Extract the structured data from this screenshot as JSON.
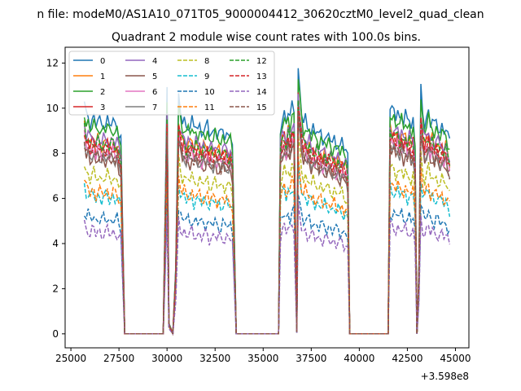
{
  "chart_data": {
    "type": "line",
    "suptitle": "n file: modeM0/AS1A10_071T05_9000004412_30620cztM0_level2_quad_clean",
    "title": "Quadrant 2 module wise count rates with 100.0s bins.",
    "xlabel": "",
    "ylabel": "",
    "offset_label": "+3.598e8",
    "xlim": [
      24700,
      45700
    ],
    "ylim": [
      -0.62,
      12.7
    ],
    "xticks": [
      25000,
      27500,
      30000,
      32500,
      35000,
      37500,
      40000,
      42500,
      45000
    ],
    "yticks": [
      0,
      2,
      4,
      6,
      8,
      10,
      12
    ],
    "legend_position": "upper-left",
    "series": [
      {
        "name": "0",
        "color": "#1f77b4",
        "style": "solid",
        "level": 9.6
      },
      {
        "name": "1",
        "color": "#ff7f0e",
        "style": "solid",
        "level": 8.7
      },
      {
        "name": "2",
        "color": "#2ca02c",
        "style": "solid",
        "level": 9.3
      },
      {
        "name": "3",
        "color": "#d62728",
        "style": "solid",
        "level": 8.5
      },
      {
        "name": "4",
        "color": "#9467bd",
        "style": "solid",
        "level": 8.8
      },
      {
        "name": "5",
        "color": "#8c564b",
        "style": "solid",
        "level": 7.9
      },
      {
        "name": "6",
        "color": "#e377c2",
        "style": "solid",
        "level": 8.2
      },
      {
        "name": "7",
        "color": "#7f7f7f",
        "style": "solid",
        "level": 8.0
      },
      {
        "name": "8",
        "color": "#bcbd22",
        "style": "dashed",
        "level": 7.1
      },
      {
        "name": "9",
        "color": "#17becf",
        "style": "dashed",
        "level": 6.2
      },
      {
        "name": "10",
        "color": "#1f77b4",
        "style": "dashed",
        "level": 5.2
      },
      {
        "name": "11",
        "color": "#ff7f0e",
        "style": "dashed",
        "level": 6.4
      },
      {
        "name": "12",
        "color": "#2ca02c",
        "style": "dashed",
        "level": 8.6
      },
      {
        "name": "13",
        "color": "#d62728",
        "style": "dashed",
        "level": 8.4
      },
      {
        "name": "14",
        "color": "#9467bd",
        "style": "dashed",
        "level": 4.6
      },
      {
        "name": "15",
        "color": "#8c564b",
        "style": "dashed",
        "level": 8.1
      }
    ],
    "profile": [
      [
        25700,
        1.06
      ],
      [
        25800,
        1.0
      ],
      [
        25900,
        1.01
      ],
      [
        26000,
        0.97
      ],
      [
        26100,
        0.99
      ],
      [
        26200,
        1.0
      ],
      [
        26300,
        0.96
      ],
      [
        26400,
        0.99
      ],
      [
        26500,
        0.98
      ],
      [
        26600,
        0.96
      ],
      [
        26700,
        0.98
      ],
      [
        26800,
        0.97
      ],
      [
        26900,
        0.99
      ],
      [
        27000,
        0.96
      ],
      [
        27100,
        0.97
      ],
      [
        27200,
        0.98
      ],
      [
        27300,
        0.96
      ],
      [
        27400,
        0.97
      ],
      [
        27500,
        0.93
      ],
      [
        27600,
        0.9
      ],
      [
        27800,
        0.0
      ],
      [
        29800,
        0.0
      ],
      [
        29900,
        0.55
      ],
      [
        30000,
        1.12
      ],
      [
        30100,
        0.05
      ],
      [
        30300,
        0.0
      ],
      [
        30450,
        0.3
      ],
      [
        30600,
        1.08
      ],
      [
        30700,
        1.02
      ],
      [
        30800,
        0.98
      ],
      [
        30900,
        0.99
      ],
      [
        31000,
        0.95
      ],
      [
        31100,
        0.97
      ],
      [
        31200,
        0.96
      ],
      [
        31300,
        0.98
      ],
      [
        31400,
        0.94
      ],
      [
        31500,
        0.97
      ],
      [
        31600,
        0.95
      ],
      [
        31700,
        0.96
      ],
      [
        31800,
        0.93
      ],
      [
        31900,
        0.95
      ],
      [
        32000,
        0.94
      ],
      [
        32100,
        0.96
      ],
      [
        32200,
        0.92
      ],
      [
        32300,
        0.94
      ],
      [
        32400,
        0.93
      ],
      [
        32500,
        0.95
      ],
      [
        32600,
        0.92
      ],
      [
        32700,
        0.93
      ],
      [
        32800,
        0.91
      ],
      [
        32900,
        0.94
      ],
      [
        33000,
        0.92
      ],
      [
        33100,
        0.93
      ],
      [
        33200,
        0.91
      ],
      [
        33300,
        0.92
      ],
      [
        33400,
        0.88
      ],
      [
        33600,
        0.0
      ],
      [
        35800,
        0.0
      ],
      [
        35900,
        0.95
      ],
      [
        36000,
        1.0
      ],
      [
        36100,
        1.02
      ],
      [
        36200,
        0.97
      ],
      [
        36300,
        1.03
      ],
      [
        36400,
        0.99
      ],
      [
        36500,
        1.05
      ],
      [
        36600,
        1.04
      ],
      [
        36750,
        0.01
      ],
      [
        36820,
        1.22
      ],
      [
        36900,
        1.12
      ],
      [
        37000,
        1.02
      ],
      [
        37100,
        0.97
      ],
      [
        37200,
        0.99
      ],
      [
        37300,
        0.95
      ],
      [
        37400,
        0.97
      ],
      [
        37500,
        0.93
      ],
      [
        37600,
        0.95
      ],
      [
        37700,
        0.92
      ],
      [
        37800,
        0.94
      ],
      [
        37900,
        0.91
      ],
      [
        38000,
        0.93
      ],
      [
        38100,
        0.9
      ],
      [
        38200,
        0.92
      ],
      [
        38300,
        0.89
      ],
      [
        38400,
        0.91
      ],
      [
        38500,
        0.9
      ],
      [
        38600,
        0.88
      ],
      [
        38700,
        0.9
      ],
      [
        38800,
        0.87
      ],
      [
        38900,
        0.89
      ],
      [
        39000,
        0.86
      ],
      [
        39100,
        0.88
      ],
      [
        39200,
        0.85
      ],
      [
        39300,
        0.86
      ],
      [
        39400,
        0.82
      ],
      [
        39500,
        0.0
      ],
      [
        41500,
        0.0
      ],
      [
        41600,
        1.04
      ],
      [
        41700,
        1.02
      ],
      [
        41800,
        1.03
      ],
      [
        41900,
        1.0
      ],
      [
        42000,
        1.03
      ],
      [
        42100,
        0.99
      ],
      [
        42200,
        1.02
      ],
      [
        42300,
        0.98
      ],
      [
        42400,
        1.01
      ],
      [
        42500,
        0.97
      ],
      [
        42600,
        1.0
      ],
      [
        42700,
        0.96
      ],
      [
        42800,
        0.99
      ],
      [
        42900,
        0.86
      ],
      [
        43000,
        0.0
      ],
      [
        43100,
        0.3
      ],
      [
        43200,
        1.12
      ],
      [
        43300,
        1.02
      ],
      [
        43400,
        0.97
      ],
      [
        43500,
        1.0
      ],
      [
        43600,
        1.03
      ],
      [
        43700,
        0.97
      ],
      [
        43800,
        0.99
      ],
      [
        43900,
        0.95
      ],
      [
        44000,
        0.98
      ],
      [
        44100,
        0.96
      ],
      [
        44200,
        0.94
      ],
      [
        44300,
        0.96
      ],
      [
        44400,
        0.93
      ],
      [
        44500,
        0.95
      ],
      [
        44600,
        0.91
      ],
      [
        44700,
        0.88
      ]
    ]
  }
}
